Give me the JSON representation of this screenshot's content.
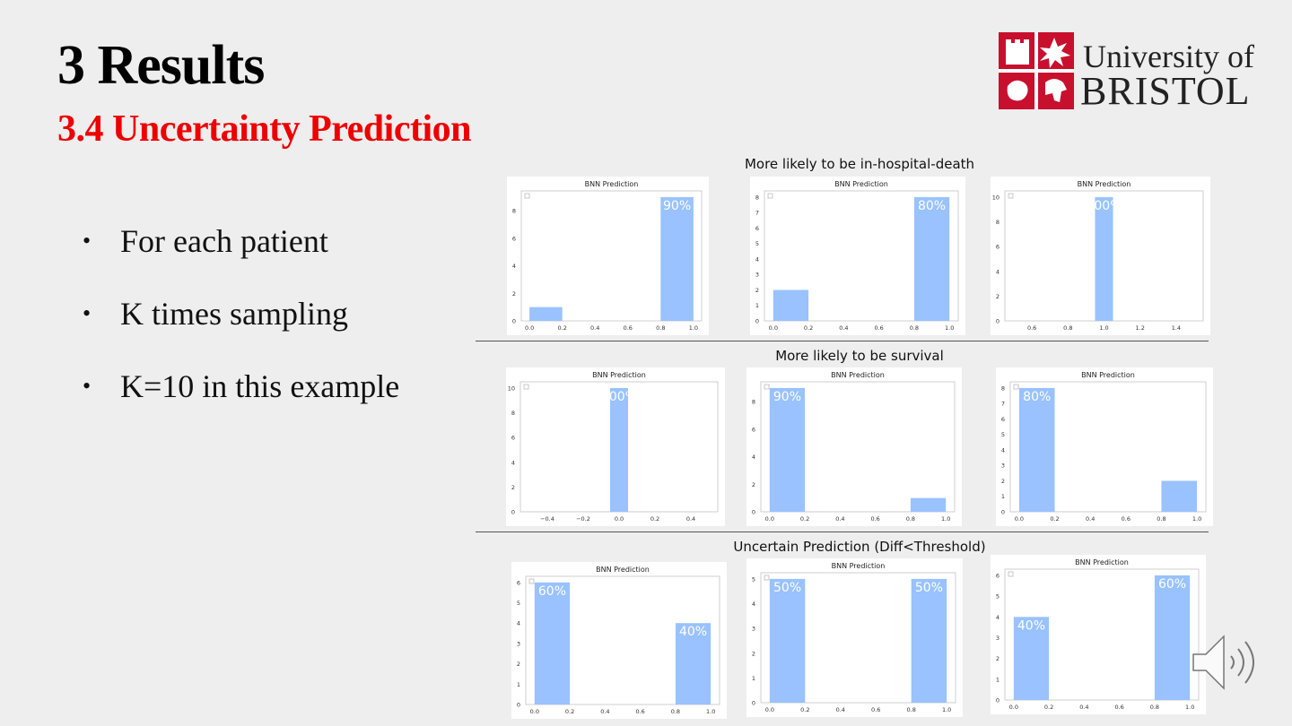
{
  "slide": {
    "title": "3 Results",
    "subtitle": "3.4 Uncertainty Prediction",
    "bullets": [
      "For each patient",
      "K times sampling",
      "K=10 in this example"
    ],
    "logo": {
      "line1": "University of",
      "line2": "BRISTOL",
      "color": "#c8102e"
    },
    "audio_icon": "speaker-icon"
  },
  "sections": [
    {
      "title": "More likely to be in-hospital-death"
    },
    {
      "title": "More likely to be survival"
    },
    {
      "title": "Uncertain Prediction (Diff<Threshold)"
    }
  ],
  "chart_data": [
    {
      "type": "bar",
      "section": 0,
      "title": "BNN Prediction",
      "x": [
        0.1,
        0.9
      ],
      "values": [
        1,
        9
      ],
      "bar_width": 0.2,
      "labels": [
        "",
        "90%"
      ],
      "xlim": [
        -0.05,
        1.05
      ],
      "ylim": [
        0,
        9.45
      ],
      "xticks": [
        0.0,
        0.2,
        0.4,
        0.6,
        0.8,
        1.0
      ],
      "yticks": [
        0,
        2,
        4,
        6,
        8
      ],
      "color": "#99c2ff"
    },
    {
      "type": "bar",
      "section": 0,
      "title": "BNN Prediction",
      "x": [
        0.1,
        0.9
      ],
      "values": [
        2,
        8
      ],
      "bar_width": 0.2,
      "labels": [
        "",
        "80%"
      ],
      "xlim": [
        -0.05,
        1.05
      ],
      "ylim": [
        0,
        8.4
      ],
      "xticks": [
        0.0,
        0.2,
        0.4,
        0.6,
        0.8,
        1.0
      ],
      "yticks": [
        0,
        1,
        2,
        3,
        4,
        5,
        6,
        7,
        8
      ],
      "color": "#99c2ff"
    },
    {
      "type": "bar",
      "section": 0,
      "title": "BNN Prediction",
      "x": [
        1.0
      ],
      "values": [
        10
      ],
      "bar_width": 0.1,
      "labels": [
        "100%"
      ],
      "xlim": [
        0.45,
        1.55
      ],
      "ylim": [
        0,
        10.5
      ],
      "xticks": [
        0.6,
        0.8,
        1.0,
        1.2,
        1.4
      ],
      "yticks": [
        0,
        2,
        4,
        6,
        8,
        10
      ],
      "color": "#99c2ff"
    },
    {
      "type": "bar",
      "section": 1,
      "title": "BNN Prediction",
      "x": [
        0.0
      ],
      "values": [
        10
      ],
      "bar_width": 0.1,
      "labels": [
        "100%"
      ],
      "xlim": [
        -0.55,
        0.55
      ],
      "ylim": [
        0,
        10.5
      ],
      "xticks": [
        -0.4,
        -0.2,
        0.0,
        0.2,
        0.4
      ],
      "xticklabels": [
        "−0.4",
        "−0.2",
        "0.0",
        "0.2",
        "0.4"
      ],
      "yticks": [
        0,
        2,
        4,
        6,
        8,
        10
      ],
      "color": "#99c2ff"
    },
    {
      "type": "bar",
      "section": 1,
      "title": "BNN Prediction",
      "x": [
        0.1,
        0.9
      ],
      "values": [
        9,
        1
      ],
      "bar_width": 0.2,
      "labels": [
        "90%",
        ""
      ],
      "xlim": [
        -0.05,
        1.05
      ],
      "ylim": [
        0,
        9.45
      ],
      "xticks": [
        0.0,
        0.2,
        0.4,
        0.6,
        0.8,
        1.0
      ],
      "yticks": [
        0,
        2,
        4,
        6,
        8
      ],
      "color": "#99c2ff"
    },
    {
      "type": "bar",
      "section": 1,
      "title": "BNN Prediction",
      "x": [
        0.1,
        0.9
      ],
      "values": [
        8,
        2
      ],
      "bar_width": 0.2,
      "labels": [
        "80%",
        ""
      ],
      "xlim": [
        -0.05,
        1.05
      ],
      "ylim": [
        0,
        8.4
      ],
      "xticks": [
        0.0,
        0.2,
        0.4,
        0.6,
        0.8,
        1.0
      ],
      "yticks": [
        0,
        1,
        2,
        3,
        4,
        5,
        6,
        7,
        8
      ],
      "color": "#99c2ff"
    },
    {
      "type": "bar",
      "section": 2,
      "title": "BNN Prediction",
      "x": [
        0.1,
        0.9
      ],
      "values": [
        6,
        4
      ],
      "bar_width": 0.2,
      "labels": [
        "60%",
        "40%"
      ],
      "xlim": [
        -0.05,
        1.05
      ],
      "ylim": [
        0,
        6.3
      ],
      "xticks": [
        0.0,
        0.2,
        0.4,
        0.6,
        0.8,
        1.0
      ],
      "yticks": [
        0,
        1,
        2,
        3,
        4,
        5,
        6
      ],
      "color": "#99c2ff"
    },
    {
      "type": "bar",
      "section": 2,
      "title": "BNN Prediction",
      "x": [
        0.1,
        0.9
      ],
      "values": [
        5,
        5
      ],
      "bar_width": 0.2,
      "labels": [
        "50%",
        "50%"
      ],
      "xlim": [
        -0.05,
        1.05
      ],
      "ylim": [
        0,
        5.25
      ],
      "xticks": [
        0.0,
        0.2,
        0.4,
        0.6,
        0.8,
        1.0
      ],
      "yticks": [
        0,
        1,
        2,
        3,
        4,
        5
      ],
      "color": "#99c2ff"
    },
    {
      "type": "bar",
      "section": 2,
      "title": "BNN Prediction",
      "x": [
        0.1,
        0.9
      ],
      "values": [
        4,
        6
      ],
      "bar_width": 0.2,
      "labels": [
        "40%",
        "60%"
      ],
      "xlim": [
        -0.05,
        1.05
      ],
      "ylim": [
        0,
        6.3
      ],
      "xticks": [
        0.0,
        0.2,
        0.4,
        0.6,
        0.8,
        1.0
      ],
      "yticks": [
        0,
        1,
        2,
        3,
        4,
        5,
        6
      ],
      "color": "#99c2ff"
    }
  ]
}
